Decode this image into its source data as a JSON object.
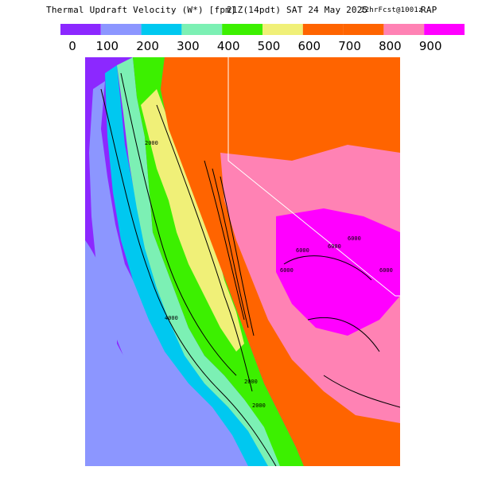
{
  "header": {
    "product": "Thermal Updraft Velocity (W*) [fpm]",
    "valid_time": "21Z(14pdt) SAT 24 May 2025",
    "forecast": "12hrFcst@1001z",
    "model": "RAP"
  },
  "legend": {
    "bins": [
      {
        "label": "0",
        "color": "#8c28ff"
      },
      {
        "label": "100",
        "color": "#8c96ff"
      },
      {
        "label": "200",
        "color": "#00c8f0"
      },
      {
        "label": "300",
        "color": "#7cf0b4"
      },
      {
        "label": "400",
        "color": "#3cf000"
      },
      {
        "label": "500",
        "color": "#f0f078"
      },
      {
        "label": "600",
        "color": "#ff6400"
      },
      {
        "label": "700",
        "color": "#ff6400"
      },
      {
        "label": "800",
        "color": "#ff82b4"
      },
      {
        "label": "900",
        "color": "#ff00ff"
      }
    ]
  },
  "map": {
    "contour_labels": [
      "2000",
      "4000",
      "6000",
      "6000",
      "6000",
      "6000",
      "6000",
      "2000",
      "2000"
    ]
  }
}
